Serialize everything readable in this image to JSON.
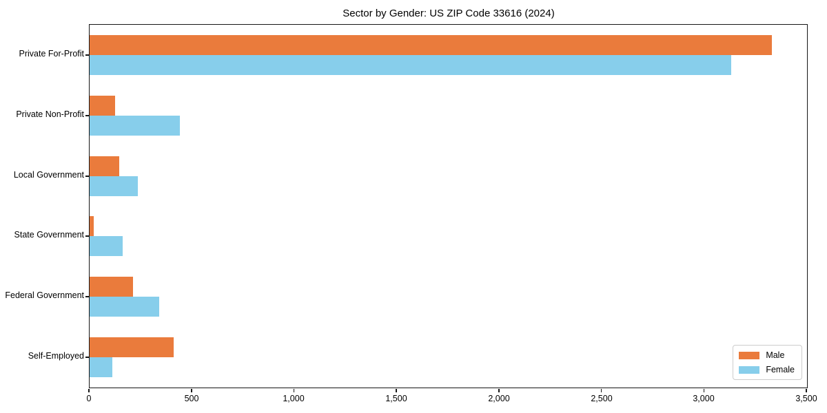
{
  "chart_data": {
    "type": "bar",
    "orientation": "horizontal",
    "title": "Sector by Gender: US ZIP Code 33616 (2024)",
    "categories": [
      "Private For-Profit",
      "Private Non-Profit",
      "Local Government",
      "State Government",
      "Federal Government",
      "Self-Employed"
    ],
    "series": [
      {
        "name": "Male",
        "color": "#EA7B3C",
        "values": [
          3330,
          125,
          145,
          20,
          210,
          410
        ]
      },
      {
        "name": "Female",
        "color": "#87CEEB",
        "values": [
          3130,
          440,
          235,
          160,
          340,
          110
        ]
      }
    ],
    "xlabel": "",
    "ylabel": "",
    "xlim": [
      0,
      3500
    ],
    "x_ticks": [
      0,
      500,
      1000,
      1500,
      2000,
      2500,
      3000,
      3500
    ],
    "x_tick_labels": [
      "0",
      "500",
      "1,000",
      "1,500",
      "2,000",
      "2,500",
      "3,000",
      "3,500"
    ],
    "grid": false,
    "legend": {
      "position": "lower right",
      "items": [
        "Male",
        "Female"
      ]
    }
  }
}
